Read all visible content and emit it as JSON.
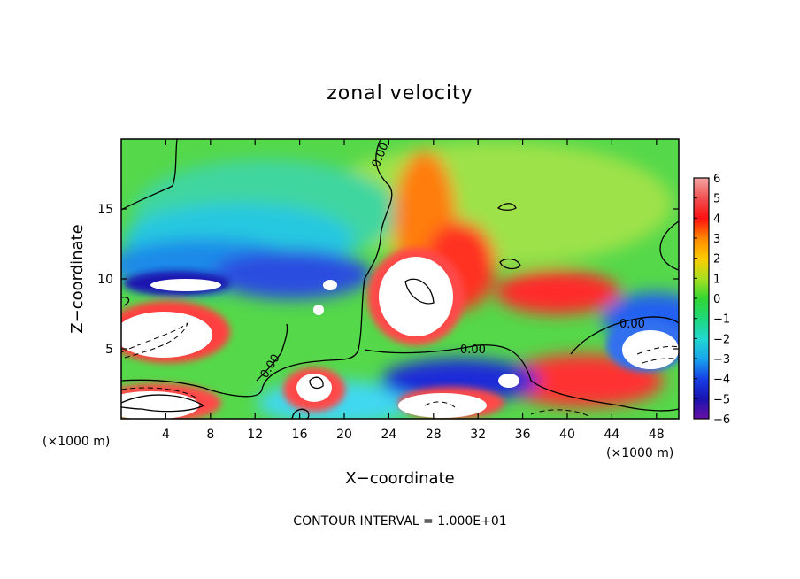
{
  "chart_data": {
    "type": "heatmap",
    "title": "zonal velocity",
    "xlabel": "X−coordinate",
    "ylabel": "Z−coordinate",
    "x_units_label": "(×1000 m)",
    "y_units_label": "(×1000 m)",
    "xlim": [
      0,
      50
    ],
    "ylim": [
      0,
      20
    ],
    "x_ticks": [
      "4",
      "8",
      "12",
      "16",
      "20",
      "24",
      "28",
      "32",
      "36",
      "40",
      "44",
      "48"
    ],
    "x_tick_values": [
      4,
      8,
      12,
      16,
      20,
      24,
      28,
      32,
      36,
      40,
      44,
      48
    ],
    "y_ticks": [
      "5",
      "10",
      "15"
    ],
    "y_tick_values": [
      5,
      10,
      15
    ],
    "colorbar": {
      "labels": [
        "6",
        "5",
        "4",
        "3",
        "2",
        "1",
        "0",
        "−1",
        "−2",
        "−3",
        "−4",
        "−5",
        "−6"
      ],
      "values": [
        6,
        5,
        4,
        3,
        2,
        1,
        0,
        -1,
        -2,
        -3,
        -4,
        -5,
        -6
      ],
      "colors": [
        "#f4a4a4",
        "#f05050",
        "#ff1010",
        "#ff8800",
        "#ffcc00",
        "#a8e020",
        "#33d633",
        "#1ed87a",
        "#22d8d0",
        "#19a6ee",
        "#1640e6",
        "#1a12b0",
        "#6a12a6"
      ]
    },
    "contour_labels": [
      "0.00",
      "0.00",
      "0.00",
      "0.00"
    ],
    "footer": "CONTOUR INTERVAL = 1.000E+01"
  }
}
